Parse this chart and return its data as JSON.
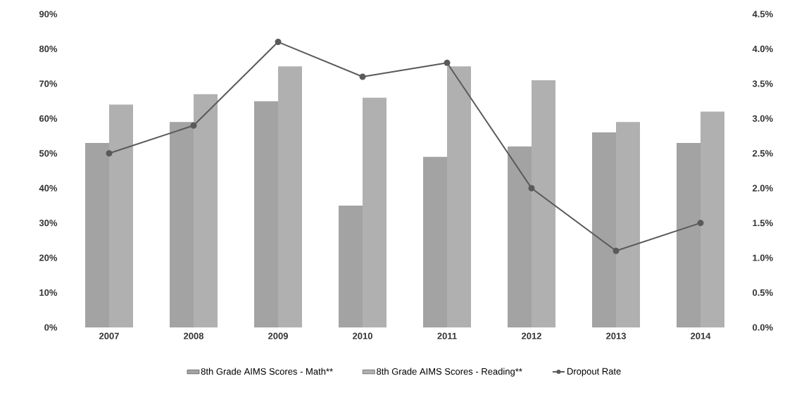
{
  "chart_data": {
    "type": "bar",
    "categories": [
      "2007",
      "2008",
      "2009",
      "2010",
      "2011",
      "2012",
      "2013",
      "2014"
    ],
    "series": [
      {
        "name": "8th Grade AIMS Scores - Math**",
        "color": "#a3a3a3",
        "values": [
          53,
          59,
          65,
          35,
          49,
          52,
          56,
          53
        ]
      },
      {
        "name": "8th Grade AIMS Scores - Reading**",
        "color": "#b0b0b0",
        "values": [
          64,
          67,
          75,
          66,
          75,
          71,
          59,
          62
        ]
      },
      {
        "name": "Dropout Rate",
        "type": "line",
        "axis": "y2",
        "color": "#5a5a5a",
        "marker": "circle",
        "values": [
          2.5,
          2.9,
          4.1,
          3.6,
          3.8,
          2.0,
          1.1,
          1.5
        ]
      }
    ],
    "ylim": [
      0,
      90
    ],
    "yticks": [
      {
        "value": 0,
        "label": "0%"
      },
      {
        "value": 10,
        "label": "10%"
      },
      {
        "value": 20,
        "label": "20%"
      },
      {
        "value": 30,
        "label": "30%"
      },
      {
        "value": 40,
        "label": "40%"
      },
      {
        "value": 50,
        "label": "50%"
      },
      {
        "value": 60,
        "label": "60%"
      },
      {
        "value": 70,
        "label": "70%"
      },
      {
        "value": 80,
        "label": "80%"
      },
      {
        "value": 90,
        "label": "90%"
      }
    ],
    "y2lim": [
      0,
      4.5
    ],
    "y2ticks": [
      {
        "value": 0,
        "label": "0.0%"
      },
      {
        "value": 0.5,
        "label": "0.5%"
      },
      {
        "value": 1,
        "label": "1.0%"
      },
      {
        "value": 1.5,
        "label": "1.5%"
      },
      {
        "value": 2,
        "label": "2.0%"
      },
      {
        "value": 2.5,
        "label": "2.5%"
      },
      {
        "value": 3,
        "label": "3.0%"
      },
      {
        "value": 3.5,
        "label": "3.5%"
      },
      {
        "value": 4,
        "label": "4.0%"
      },
      {
        "value": 4.5,
        "label": "4.5%"
      }
    ],
    "legend": "bottom",
    "grid": false
  }
}
